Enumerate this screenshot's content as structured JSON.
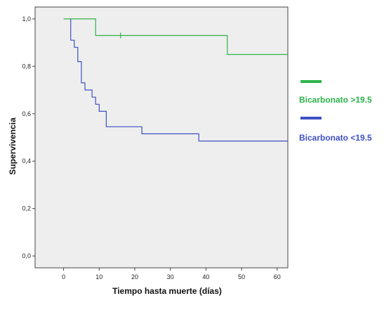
{
  "chart_data": {
    "type": "line",
    "xlabel": "Tiempo hasta muerte (días)",
    "ylabel": "Supervivencia",
    "xlim": [
      -8,
      63
    ],
    "ylim": [
      -0.05,
      1.05
    ],
    "x_ticks": [
      0,
      10,
      20,
      30,
      40,
      50,
      60
    ],
    "x_tick_labels": [
      "0",
      "10",
      "20",
      "30",
      "40",
      "50",
      "60"
    ],
    "y_ticks": [
      0.0,
      0.2,
      0.4,
      0.6,
      0.8,
      1.0
    ],
    "y_tick_labels": [
      "0,0",
      "0,2",
      "0,4",
      "0,6",
      "0,8",
      "1,0"
    ],
    "grid": false,
    "background": "#eeeeee",
    "legend_position": "right",
    "step": true,
    "series": [
      {
        "name": "Bicarbonato >19.5",
        "color": "#2db34a",
        "x": [
          0,
          9,
          9,
          46,
          46,
          63
        ],
        "y": [
          1.0,
          1.0,
          0.93,
          0.93,
          0.85,
          0.85
        ],
        "censored": [
          {
            "x": 16,
            "y": 0.93
          }
        ]
      },
      {
        "name": "Bicarbonato <19.5",
        "color": "#3f51c4",
        "x": [
          2,
          2,
          3,
          3,
          4,
          4,
          5,
          5,
          6,
          6,
          7,
          7,
          8,
          8,
          9,
          9,
          10,
          10,
          12,
          12,
          22,
          22,
          38,
          38,
          63
        ],
        "y": [
          1.0,
          0.91,
          0.91,
          0.88,
          0.88,
          0.82,
          0.82,
          0.73,
          0.73,
          0.7,
          0.7,
          0.7,
          0.7,
          0.67,
          0.67,
          0.64,
          0.64,
          0.61,
          0.61,
          0.545,
          0.545,
          0.515,
          0.515,
          0.485,
          0.485
        ],
        "censored": []
      }
    ]
  }
}
